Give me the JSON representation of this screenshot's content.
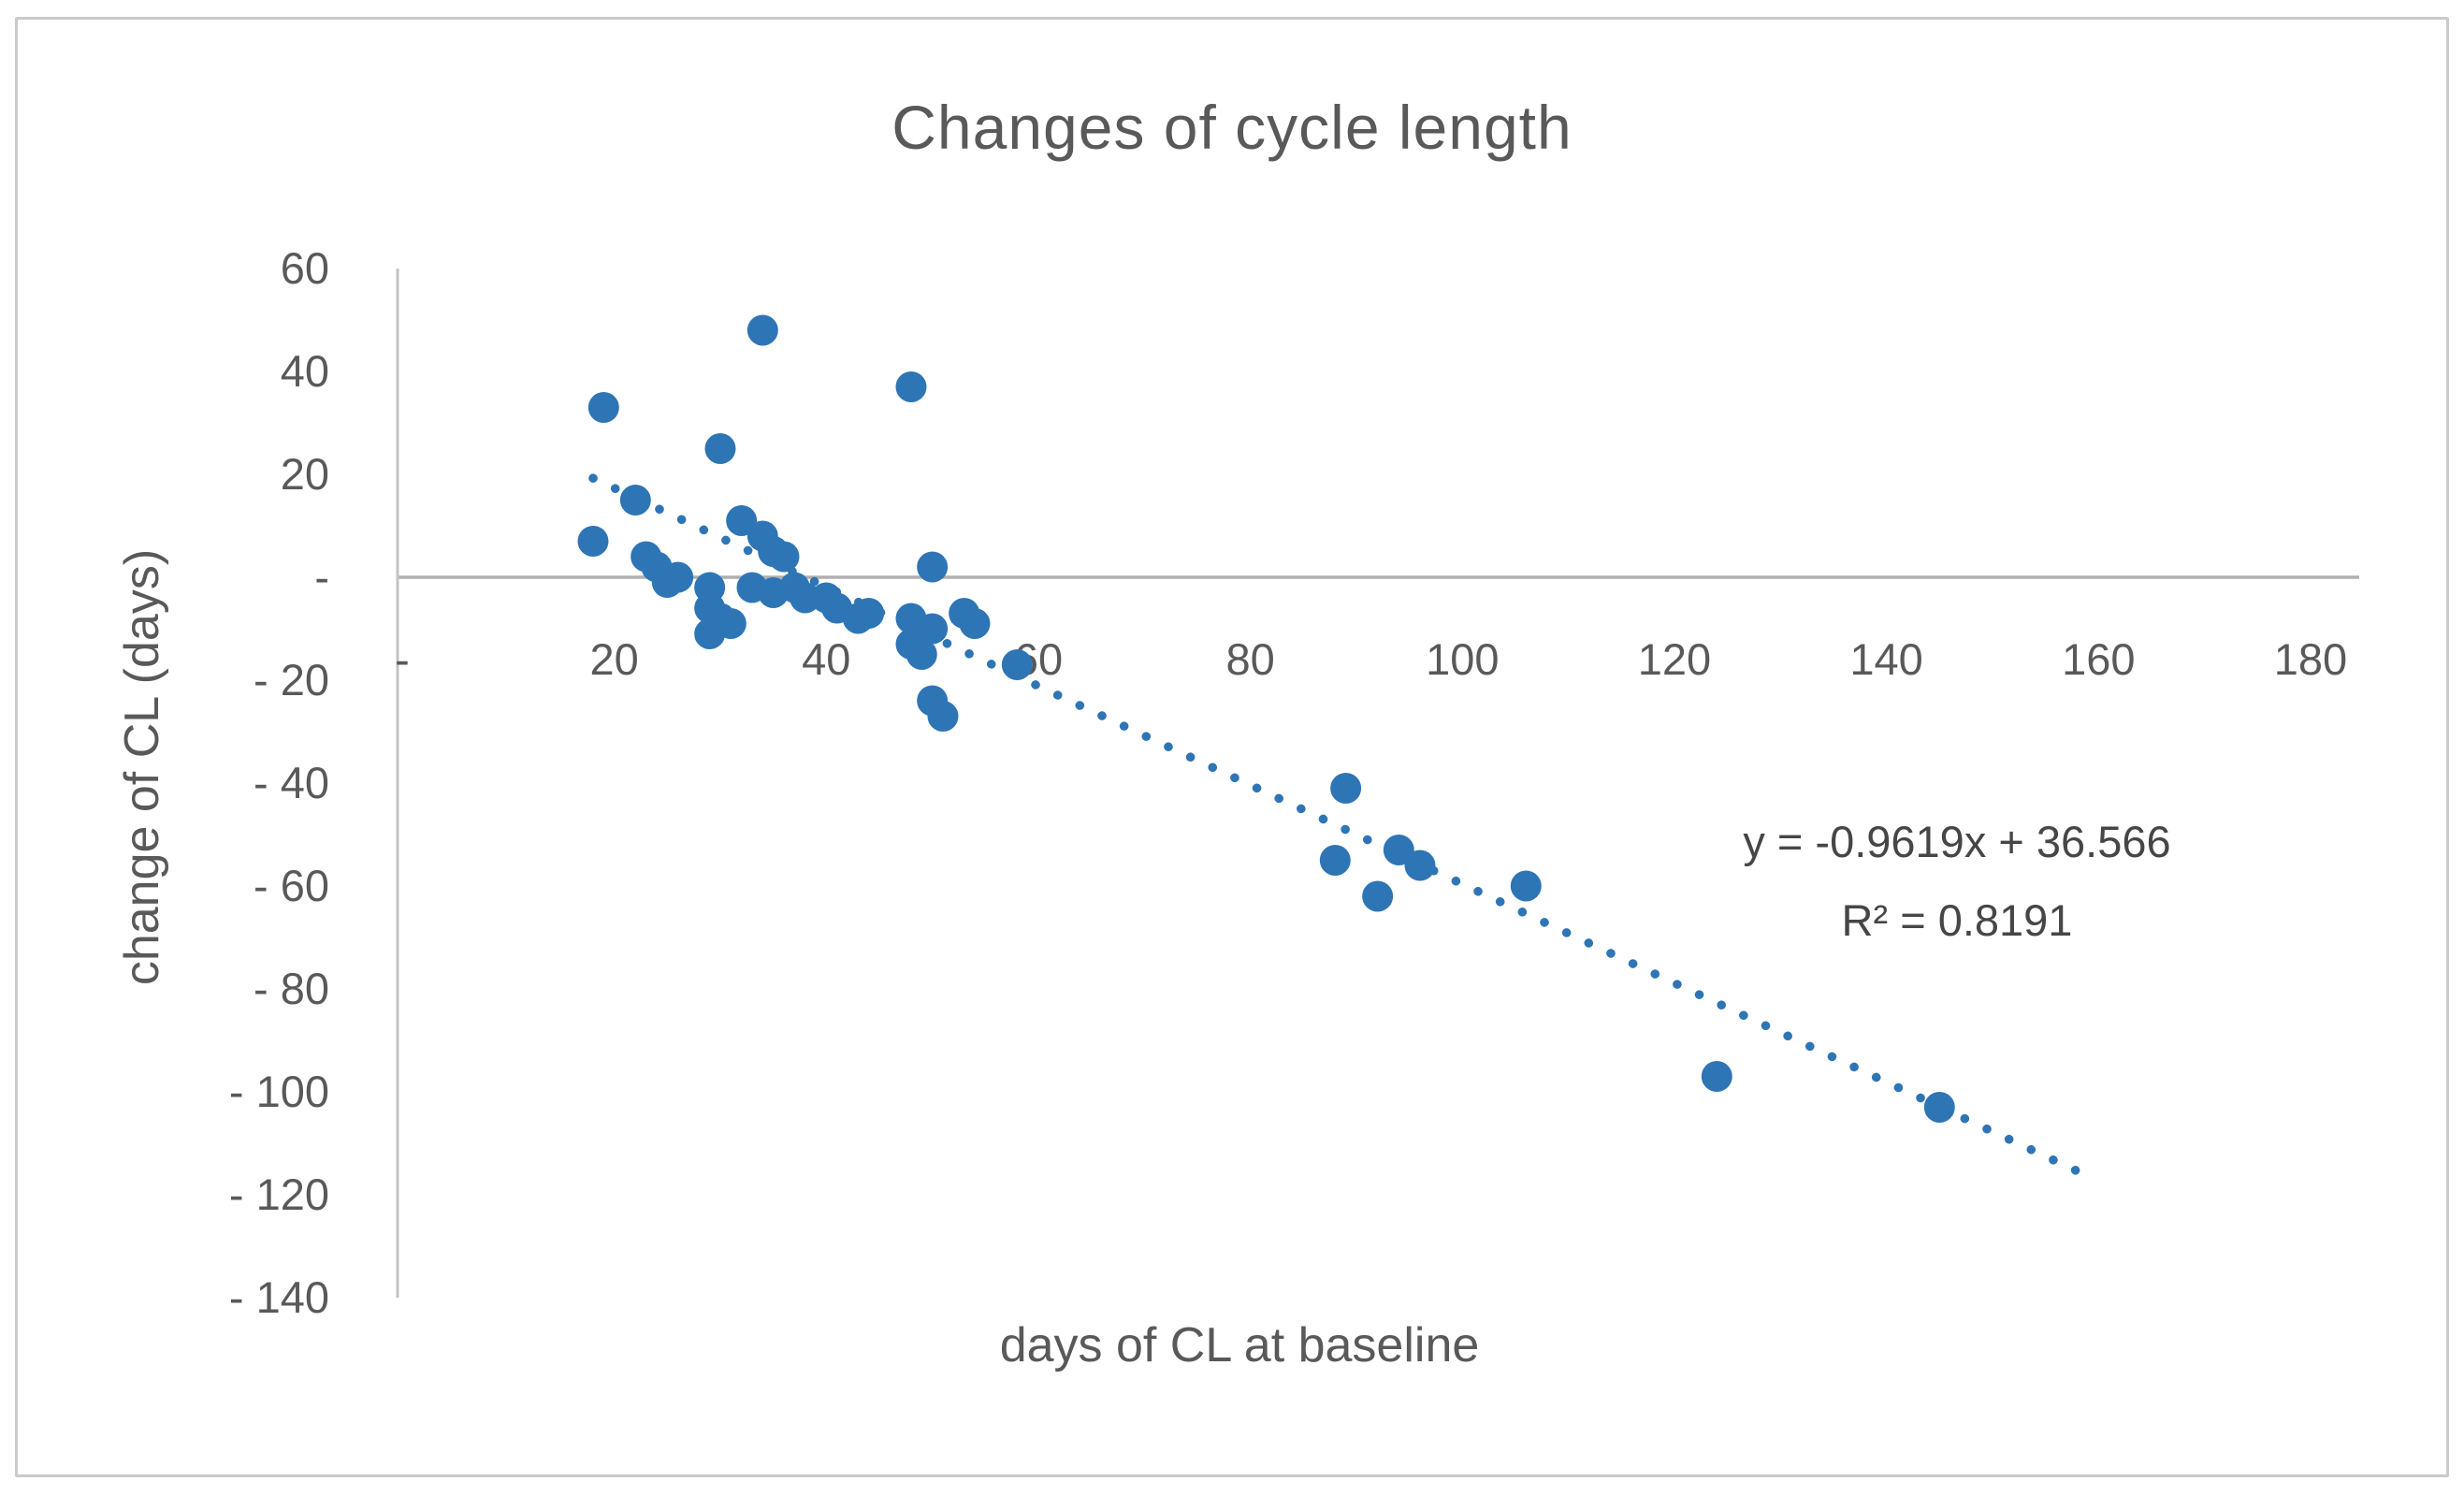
{
  "chart_data": {
    "type": "scatter",
    "title": "Changes of cycle length",
    "xlabel": "days of CL at baseline",
    "ylabel": "change of CL (days)",
    "xlim": [
      0,
      180
    ],
    "ylim": [
      -140,
      60
    ],
    "grid": "zero-line-only",
    "legend_position": "none",
    "x_axis": {
      "tick_values": [
        0,
        20,
        40,
        60,
        80,
        100,
        120,
        140,
        160,
        180
      ],
      "tick_labels": [
        "-",
        "20",
        "40",
        "60",
        "80",
        "100",
        "120",
        "140",
        "160",
        "180"
      ]
    },
    "y_axis": {
      "tick_values": [
        60,
        40,
        20,
        0,
        -20,
        -40,
        -60,
        -80,
        -100,
        -120,
        -140
      ],
      "tick_labels": [
        "60",
        "40",
        "20",
        "-",
        "- 20",
        "- 40",
        "- 60",
        "- 80",
        "- 100",
        "- 120",
        "- 140"
      ]
    },
    "series": [
      {
        "name": "change of CL vs days of CL at baseline",
        "marker": "circle",
        "marker_color": "#2E75B6",
        "points": [
          [
            18,
            7
          ],
          [
            19,
            33
          ],
          [
            22,
            15
          ],
          [
            23,
            4
          ],
          [
            24,
            2
          ],
          [
            25,
            -1
          ],
          [
            26,
            0
          ],
          [
            29,
            -2
          ],
          [
            29,
            -6
          ],
          [
            30,
            -8
          ],
          [
            29,
            -11
          ],
          [
            31,
            -9
          ],
          [
            30,
            25
          ],
          [
            32,
            11
          ],
          [
            34,
            8
          ],
          [
            35,
            5
          ],
          [
            36,
            4
          ],
          [
            34,
            48
          ],
          [
            33,
            -2
          ],
          [
            35,
            -3
          ],
          [
            37,
            -2
          ],
          [
            38,
            -4
          ],
          [
            40,
            -4
          ],
          [
            41,
            -6
          ],
          [
            43,
            -8
          ],
          [
            44,
            -7
          ],
          [
            48,
            37
          ],
          [
            48,
            -8
          ],
          [
            48,
            -13
          ],
          [
            49,
            -15
          ],
          [
            50,
            2
          ],
          [
            50,
            -10
          ],
          [
            53,
            -7
          ],
          [
            54,
            -9
          ],
          [
            50,
            -24
          ],
          [
            51,
            -27
          ],
          [
            58,
            -17
          ],
          [
            89,
            -41
          ],
          [
            88,
            -55
          ],
          [
            94,
            -53
          ],
          [
            96,
            -56
          ],
          [
            92,
            -62
          ],
          [
            106,
            -60
          ],
          [
            124,
            -97
          ],
          [
            145,
            -103
          ]
        ]
      }
    ],
    "trendline": {
      "style": "dotted",
      "color": "#2E75B6",
      "slope": -0.9619,
      "intercept": 36.566,
      "x_start": 18,
      "x_end": 159,
      "equation_label": "y = -0.9619x + 36.566",
      "r2_label": "R² = 0.8191"
    }
  },
  "colors": {
    "marker": "#2E75B6",
    "axis_line": "#c3c3c3",
    "zero_line": "#b0b0b0",
    "tick_text": "#595959",
    "title_text": "#595959",
    "equation_text": "#464646",
    "frame_border": "#cacaca",
    "background": "#ffffff"
  }
}
